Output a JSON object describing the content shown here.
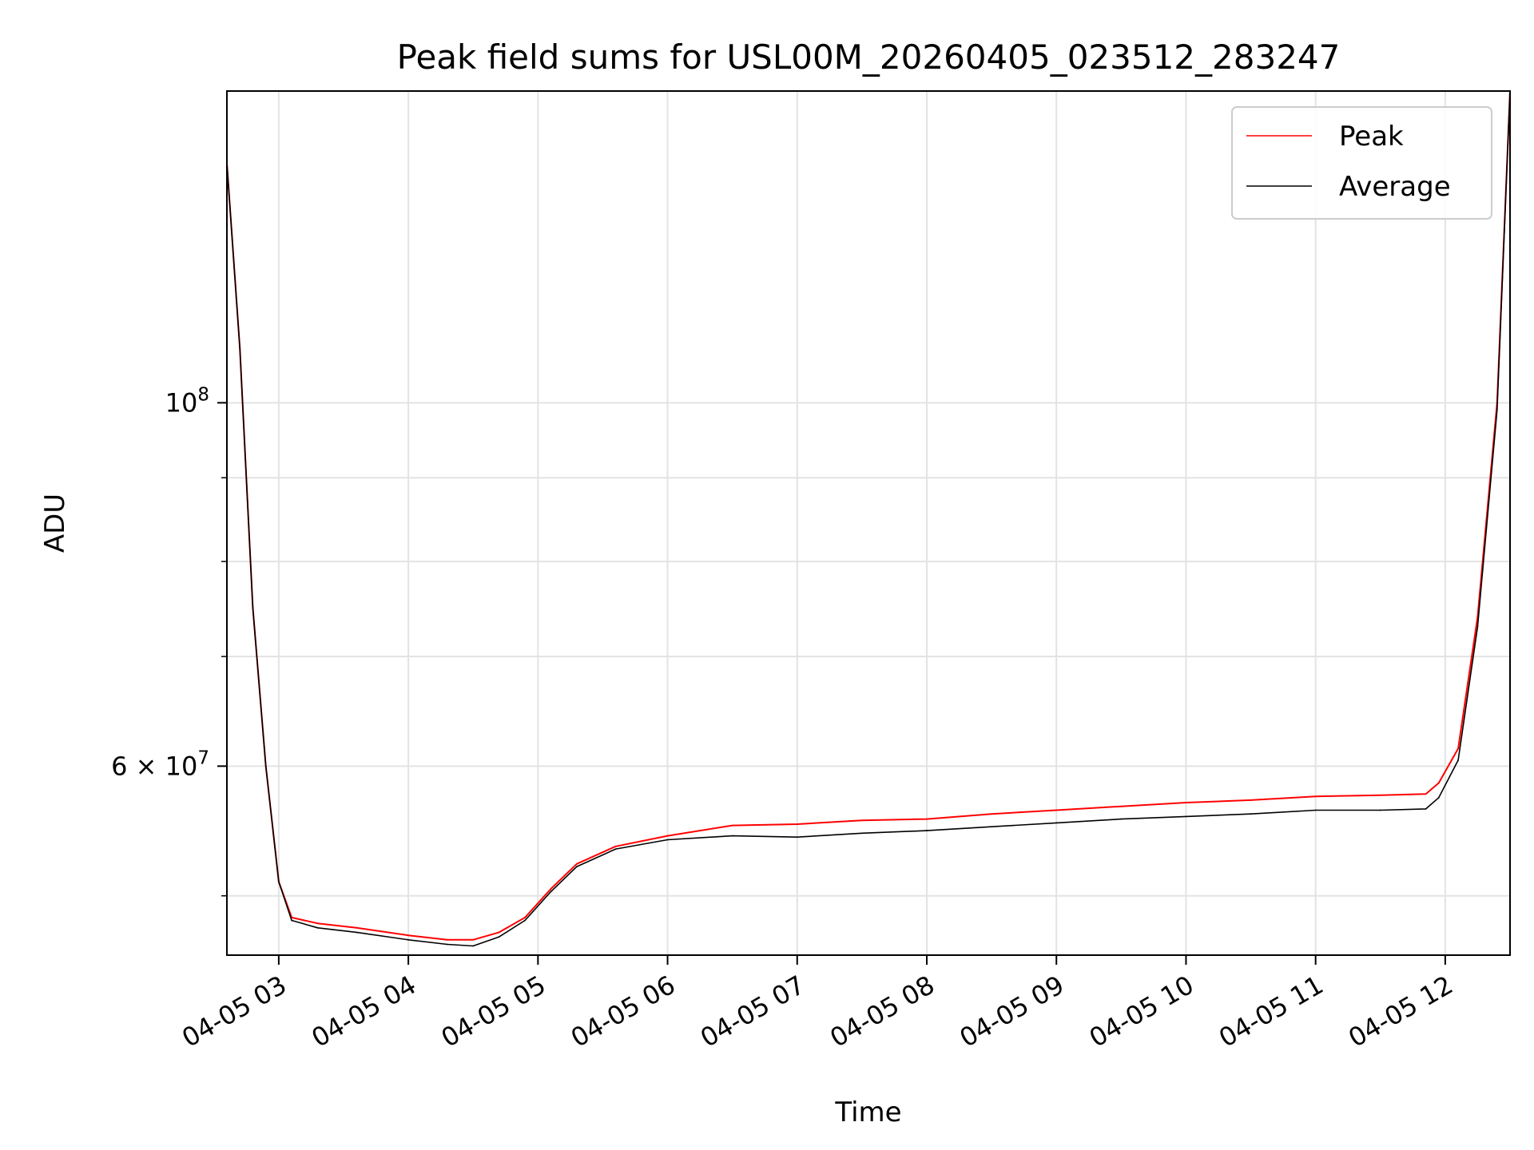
{
  "chart_data": {
    "type": "line",
    "title": "Peak field sums for USL00M_20260405_023512_283247",
    "xlabel": "Time",
    "ylabel": "ADU",
    "yscale": "log",
    "grid": true,
    "legend_position": "top-right",
    "xlim_hours": [
      2.6,
      12.5
    ],
    "ylim": [
      46000000,
      155000000
    ],
    "x_ticks": [
      {
        "value": 3,
        "label": "04-05 03"
      },
      {
        "value": 4,
        "label": "04-05 04"
      },
      {
        "value": 5,
        "label": "04-05 05"
      },
      {
        "value": 6,
        "label": "04-05 06"
      },
      {
        "value": 7,
        "label": "04-05 07"
      },
      {
        "value": 8,
        "label": "04-05 08"
      },
      {
        "value": 9,
        "label": "04-05 09"
      },
      {
        "value": 10,
        "label": "04-05 10"
      },
      {
        "value": 11,
        "label": "04-05 11"
      },
      {
        "value": 12,
        "label": "04-05 12"
      }
    ],
    "y_major_ticks": [
      {
        "value": 100000000,
        "base": "10",
        "exp": "8"
      },
      {
        "value": 60000000,
        "mantissa": "6 × 10",
        "exp": "7"
      }
    ],
    "y_minor_ticks": [
      50000000,
      70000000,
      80000000,
      90000000
    ],
    "series": [
      {
        "name": "Peak",
        "color": "#ff0000",
        "x": [
          2.6,
          2.7,
          2.8,
          2.9,
          3.0,
          3.1,
          3.3,
          3.6,
          4.0,
          4.3,
          4.5,
          4.7,
          4.9,
          5.1,
          5.3,
          5.6,
          6.0,
          6.5,
          7.0,
          7.5,
          8.0,
          8.5,
          9.0,
          9.5,
          10.0,
          10.5,
          11.0,
          11.5,
          11.85,
          11.95,
          12.1,
          12.25,
          12.4,
          12.5
        ],
        "values": [
          140000000,
          108000000,
          75000000,
          60000000,
          51000000,
          48500000,
          48100000,
          47800000,
          47300000,
          47000000,
          47000000,
          47500000,
          48500000,
          50500000,
          52300000,
          53600000,
          54400000,
          55200000,
          55300000,
          55600000,
          55700000,
          56100000,
          56400000,
          56700000,
          57000000,
          57200000,
          57500000,
          57600000,
          57700000,
          58600000,
          61500000,
          74000000,
          100000000,
          155000000
        ]
      },
      {
        "name": "Average",
        "color": "#000000",
        "x": [
          2.6,
          2.7,
          2.8,
          2.9,
          3.0,
          3.1,
          3.3,
          3.6,
          4.0,
          4.3,
          4.5,
          4.7,
          4.9,
          5.1,
          5.3,
          5.6,
          6.0,
          6.5,
          7.0,
          7.5,
          8.0,
          8.5,
          9.0,
          9.5,
          10.0,
          10.5,
          11.0,
          11.5,
          11.85,
          11.95,
          12.1,
          12.25,
          12.4,
          12.5
        ],
        "values": [
          140000000,
          108000000,
          75000000,
          60000000,
          51000000,
          48300000,
          47800000,
          47500000,
          47000000,
          46700000,
          46600000,
          47200000,
          48300000,
          50300000,
          52100000,
          53400000,
          54100000,
          54400000,
          54300000,
          54600000,
          54800000,
          55100000,
          55400000,
          55700000,
          55900000,
          56100000,
          56400000,
          56400000,
          56500000,
          57400000,
          60500000,
          73000000,
          99000000,
          155000000
        ]
      }
    ]
  }
}
